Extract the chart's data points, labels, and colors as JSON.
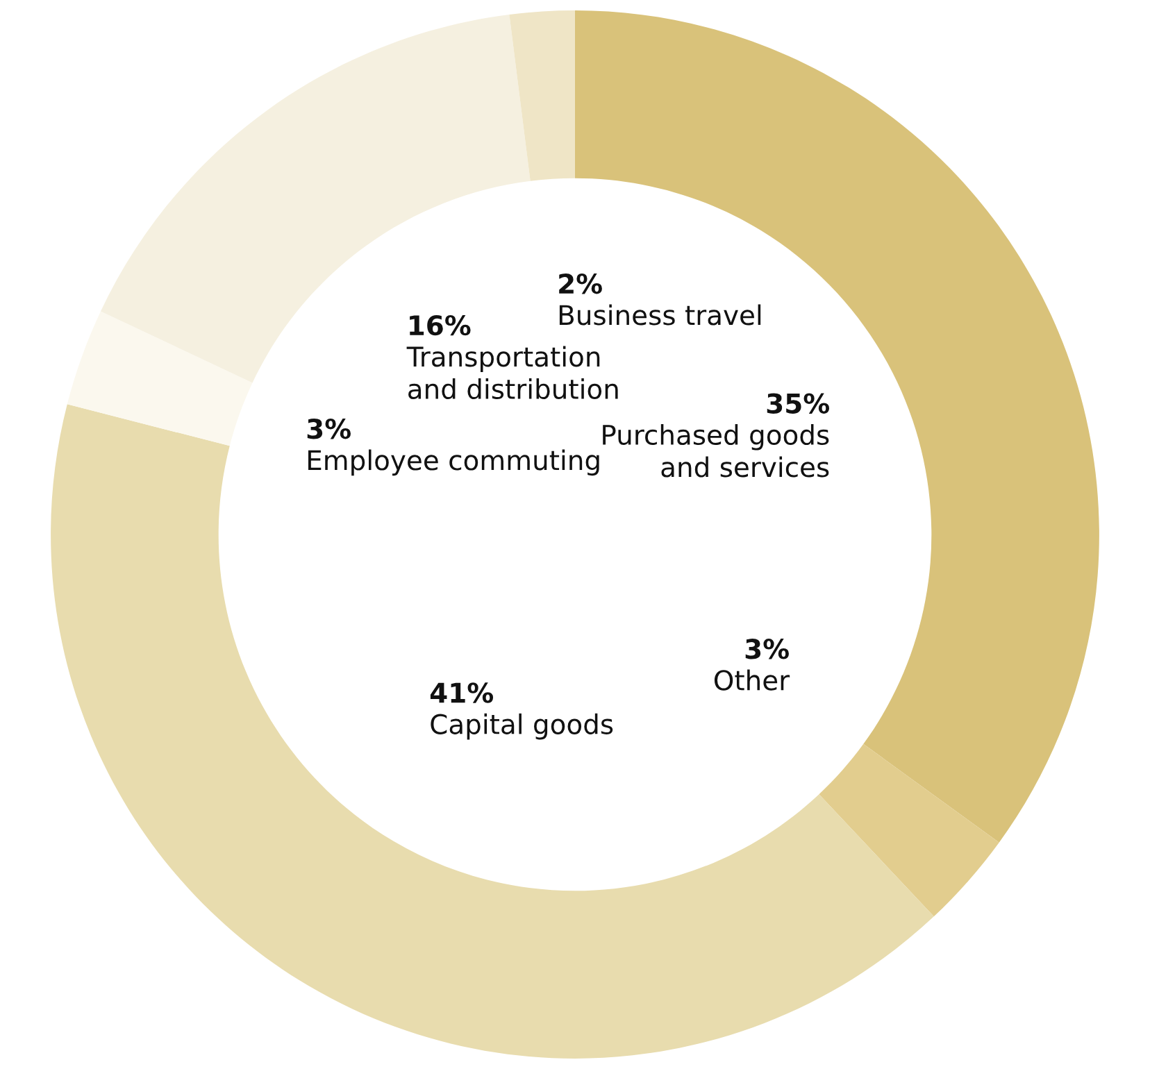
{
  "chart_data": {
    "type": "donut",
    "categories": [
      "Purchased goods and services",
      "Other",
      "Capital goods",
      "Employee commuting",
      "Transportation and distribution",
      "Business travel"
    ],
    "values": [
      35,
      3,
      41,
      3,
      16,
      2
    ],
    "value_labels": [
      "35%",
      "3%",
      "41%",
      "3%",
      "16%",
      "2%"
    ],
    "colors": [
      "#d9c27a",
      "#e2cd8e",
      "#e8dcae",
      "#fbf8ee",
      "#f5f0e0",
      "#efe5c6"
    ],
    "legend": false
  }
}
